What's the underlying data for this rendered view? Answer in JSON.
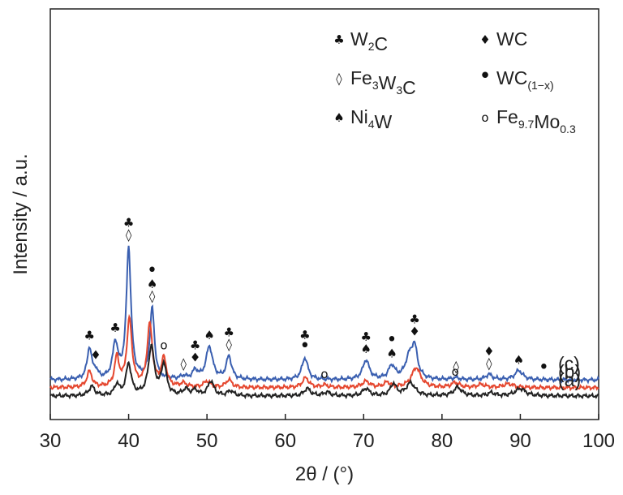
{
  "chart_data": {
    "type": "line",
    "xlabel": "2θ / (°)",
    "ylabel": "Intensity / a.u.",
    "xlim": [
      30,
      100
    ],
    "xticks": [
      "30",
      "40",
      "50",
      "60",
      "70",
      "80",
      "90",
      "100"
    ],
    "grid": false,
    "legend_position": "top-right",
    "legend": [
      {
        "symbol": "♣",
        "icon": "club-icon",
        "text": "W",
        "sub1": "2",
        "text2": "C",
        "sub2": ""
      },
      {
        "symbol": "♦",
        "icon": "diamond-filled-icon",
        "text": "WC",
        "sub1": "",
        "text2": "",
        "sub2": ""
      },
      {
        "symbol": "◊",
        "icon": "diamond-open-icon",
        "text": "Fe",
        "sub1": "3",
        "text2": "W",
        "sub2": "3",
        "text3": "C"
      },
      {
        "symbol": "•",
        "icon": "dot-icon",
        "text": "WC",
        "sub1": "(1−x)",
        "text2": "",
        "sub2": ""
      },
      {
        "symbol": "♠",
        "icon": "spade-icon",
        "text": "Ni",
        "sub1": "4",
        "text2": "W",
        "sub2": ""
      },
      {
        "symbol": "o",
        "icon": "open-circle-icon",
        "text": "Fe",
        "sub1": "9.7",
        "text2": "Mo",
        "sub2": "0.3"
      }
    ],
    "series": [
      {
        "name": "(c)",
        "color": "#3a5fb0",
        "baseline": 0.66,
        "peaks": [
          [
            35.0,
            1.3,
            0.35
          ],
          [
            35.8,
            0.3,
            0.3
          ],
          [
            38.3,
            1.45,
            0.4
          ],
          [
            40.0,
            5.4,
            0.35
          ],
          [
            43.0,
            2.9,
            0.35
          ],
          [
            47.0,
            0.12,
            0.4
          ],
          [
            48.5,
            0.35,
            0.4
          ],
          [
            50.3,
            1.35,
            0.5
          ],
          [
            52.8,
            0.95,
            0.4
          ],
          [
            62.5,
            0.9,
            0.45
          ],
          [
            70.3,
            0.8,
            0.5
          ],
          [
            73.6,
            0.55,
            0.5
          ],
          [
            75.8,
            0.8,
            0.6
          ],
          [
            76.5,
            1.2,
            0.45
          ],
          [
            81.8,
            0.08,
            0.5
          ],
          [
            86.0,
            0.22,
            0.5
          ],
          [
            89.8,
            0.38,
            0.6
          ]
        ]
      },
      {
        "name": "(b)",
        "color": "#e5472f",
        "baseline": 0.34,
        "peaks": [
          [
            35.0,
            0.65,
            0.4
          ],
          [
            38.5,
            1.2,
            0.35
          ],
          [
            40.1,
            2.75,
            0.4
          ],
          [
            42.7,
            2.55,
            0.4
          ],
          [
            44.5,
            1.15,
            0.4
          ],
          [
            47.0,
            0.15,
            0.5
          ],
          [
            50.0,
            0.25,
            0.5
          ],
          [
            52.8,
            0.32,
            0.45
          ],
          [
            62.6,
            0.4,
            0.5
          ],
          [
            65.0,
            0.1,
            0.5
          ],
          [
            70.3,
            0.25,
            0.6
          ],
          [
            73.0,
            0.2,
            0.5
          ],
          [
            76.7,
            0.82,
            0.7
          ],
          [
            81.7,
            0.2,
            0.6
          ],
          [
            85.0,
            0.12,
            0.6
          ],
          [
            88.5,
            0.15,
            0.8
          ]
        ]
      },
      {
        "name": "(a)",
        "color": "#222222",
        "baseline": 0.0,
        "peaks": [
          [
            35.3,
            0.38,
            0.45
          ],
          [
            38.5,
            0.45,
            0.35
          ],
          [
            40.0,
            1.3,
            0.4
          ],
          [
            42.9,
            2.0,
            0.45
          ],
          [
            44.5,
            1.25,
            0.4
          ],
          [
            47.3,
            0.25,
            0.45
          ],
          [
            48.5,
            0.22,
            0.4
          ],
          [
            50.5,
            0.6,
            0.45
          ],
          [
            53.0,
            0.2,
            0.45
          ],
          [
            62.8,
            0.3,
            0.5
          ],
          [
            65.3,
            0.15,
            0.5
          ],
          [
            70.3,
            0.3,
            0.5
          ],
          [
            73.8,
            0.48,
            0.45
          ],
          [
            76.0,
            0.52,
            0.7
          ],
          [
            82.0,
            0.35,
            0.6
          ],
          [
            86.3,
            0.12,
            0.5
          ],
          [
            90.0,
            0.3,
            0.8
          ]
        ]
      }
    ],
    "markers": [
      {
        "x": 35.0,
        "series": "(c)",
        "symbols": [
          "♣"
        ]
      },
      {
        "x": 35.8,
        "series": "(c)",
        "symbols": [
          "♦"
        ]
      },
      {
        "x": 38.3,
        "series": "(c)",
        "symbols": [
          "♣"
        ]
      },
      {
        "x": 40.0,
        "series": "(c)",
        "symbols": [
          "♣",
          "◊"
        ]
      },
      {
        "x": 43.0,
        "series": "(c)",
        "symbols": [
          "•",
          "♠",
          "◊"
        ]
      },
      {
        "x": 47.0,
        "series": "(c)",
        "symbols": [
          "◊"
        ]
      },
      {
        "x": 48.5,
        "series": "(c)",
        "symbols": [
          "♣",
          "♦"
        ]
      },
      {
        "x": 50.3,
        "series": "(c)",
        "symbols": [
          "♠"
        ]
      },
      {
        "x": 52.8,
        "series": "(c)",
        "symbols": [
          "♣",
          "◊"
        ]
      },
      {
        "x": 62.5,
        "series": "(c)",
        "symbols": [
          "♣",
          "•"
        ]
      },
      {
        "x": 70.3,
        "series": "(c)",
        "symbols": [
          "♣",
          "♠"
        ]
      },
      {
        "x": 73.6,
        "series": "(c)",
        "symbols": [
          "•",
          "♠"
        ]
      },
      {
        "x": 76.5,
        "series": "(c)",
        "symbols": [
          "♣",
          "♦"
        ]
      },
      {
        "x": 81.8,
        "series": "(c)",
        "symbols": [
          "◊"
        ]
      },
      {
        "x": 86.0,
        "series": "(c)",
        "symbols": [
          "♦",
          "◊"
        ]
      },
      {
        "x": 89.8,
        "series": "(c)",
        "symbols": [
          "♠"
        ]
      },
      {
        "x": 93.0,
        "series": "(c)",
        "symbols": [
          "•"
        ]
      },
      {
        "x": 44.5,
        "series": "(b)",
        "symbols": [
          "o"
        ]
      },
      {
        "x": 65.0,
        "series": "(b)",
        "symbols": [
          "o"
        ]
      },
      {
        "x": 81.7,
        "series": "(b)",
        "symbols": [
          "o"
        ]
      }
    ]
  }
}
